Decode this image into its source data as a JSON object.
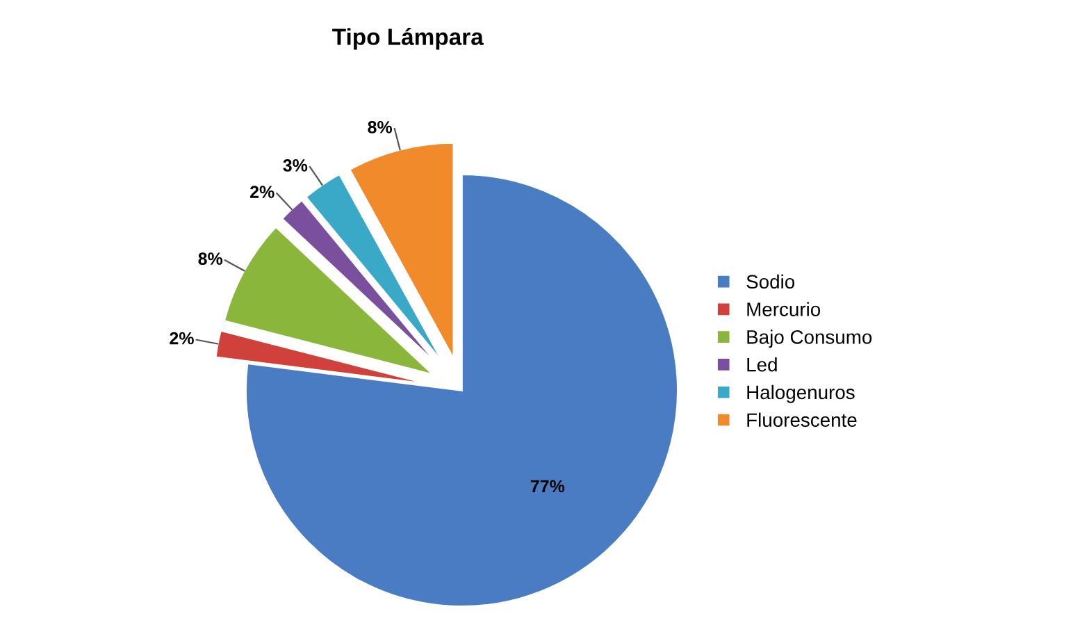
{
  "chart_data": {
    "type": "pie",
    "title": "Tipo Lámpara",
    "categories": [
      "Sodio",
      "Mercurio",
      "Bajo Consumo",
      "Led",
      "Halogenuros",
      "Fluorescente"
    ],
    "values": [
      77,
      2,
      8,
      2,
      3,
      8
    ],
    "value_labels": [
      "77%",
      "2%",
      "8%",
      "2%",
      "3%",
      "8%"
    ],
    "colors": [
      "#4a7cc4",
      "#d0413c",
      "#8bb63c",
      "#7a4f9e",
      "#3aa9c8",
      "#f08a2a"
    ],
    "legend": "right"
  }
}
